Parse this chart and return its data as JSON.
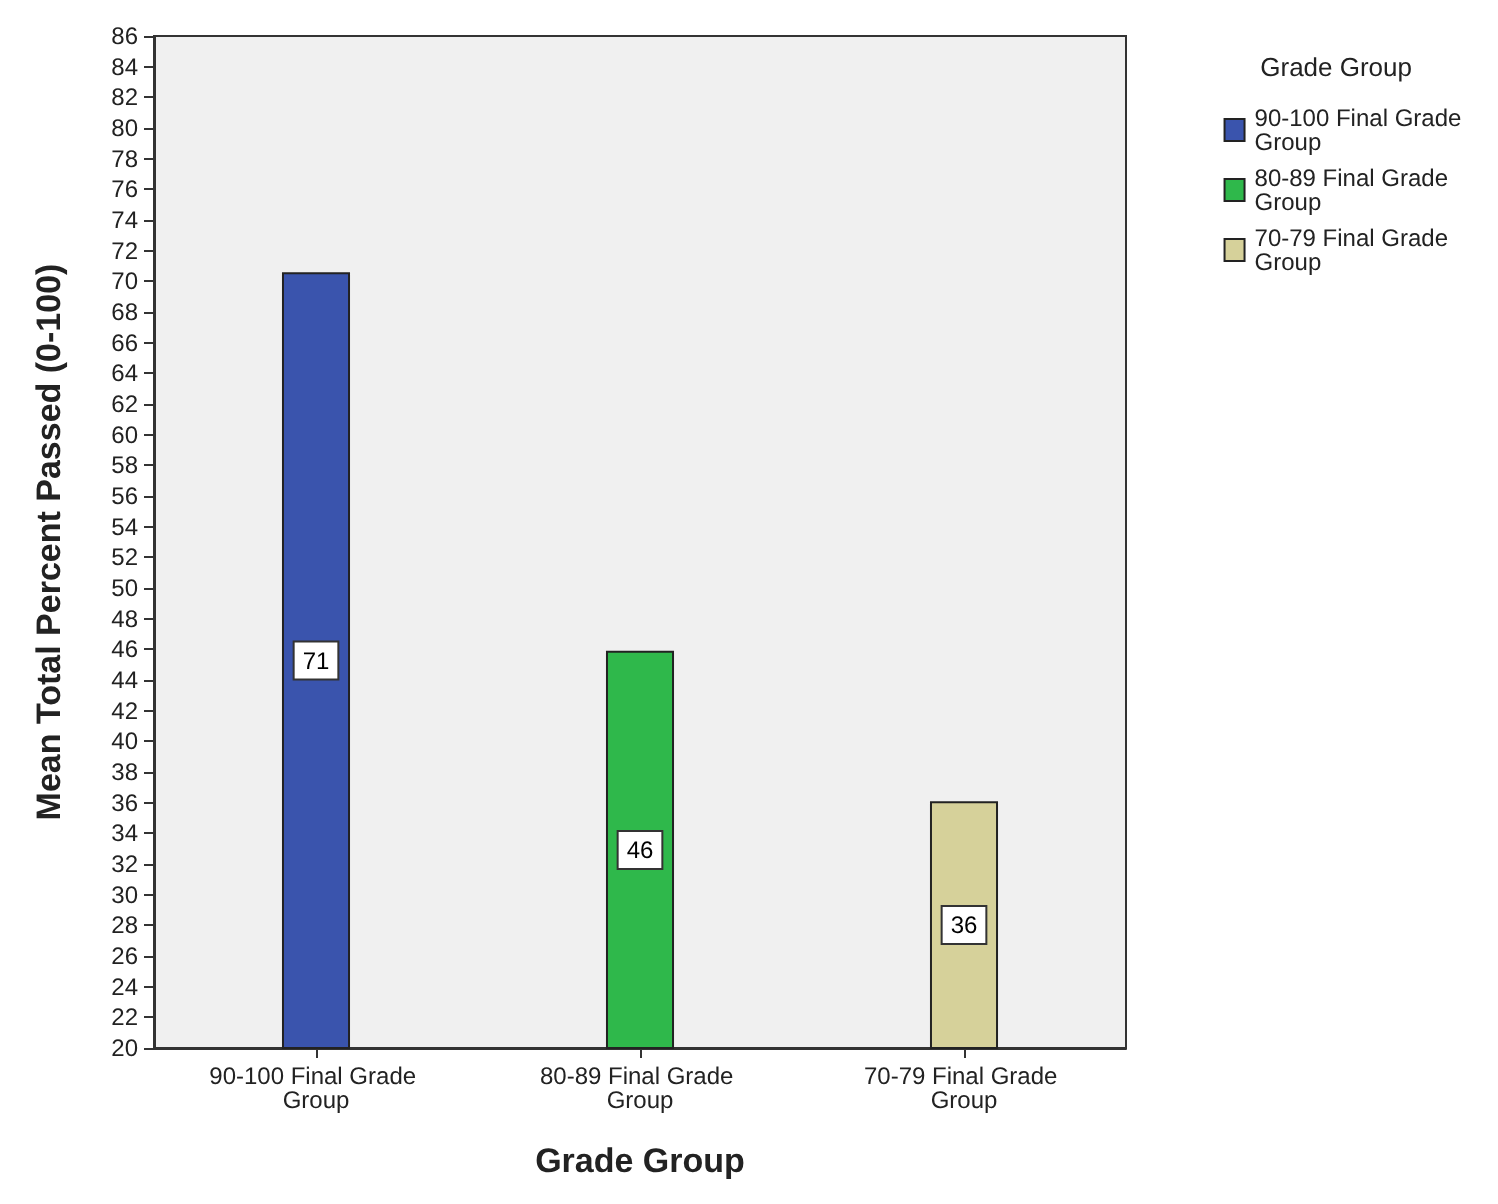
{
  "chart_data": {
    "type": "bar",
    "xlabel": "Grade Group",
    "ylabel": "Mean Total Percent Passed (0-100)",
    "legend_title": "Grade Group",
    "categories": [
      "90-100 Final Grade Group",
      "80-89 Final Grade Group",
      "70-79 Final Grade Group"
    ],
    "series": [
      {
        "name": "90-100 Final Grade Group",
        "color": "#3a54ad",
        "values": [
          70.6,
          null,
          null
        ],
        "value_labels": [
          "71",
          null,
          null
        ]
      },
      {
        "name": "80-89 Final Grade Group",
        "color": "#2fb84b",
        "values": [
          null,
          45.9,
          null
        ],
        "value_labels": [
          null,
          "46",
          null
        ]
      },
      {
        "name": "70-79 Final Grade Group",
        "color": "#d6d19a",
        "values": [
          null,
          null,
          36.1
        ],
        "value_labels": [
          null,
          null,
          "36"
        ]
      }
    ],
    "ylim": [
      20,
      86
    ],
    "yticks": [
      20,
      22,
      24,
      26,
      28,
      30,
      32,
      34,
      36,
      38,
      40,
      42,
      44,
      46,
      48,
      50,
      52,
      54,
      56,
      58,
      60,
      62,
      64,
      66,
      68,
      70,
      72,
      74,
      76,
      78,
      80,
      82,
      84,
      86
    ],
    "grid": false,
    "legend": "right"
  }
}
